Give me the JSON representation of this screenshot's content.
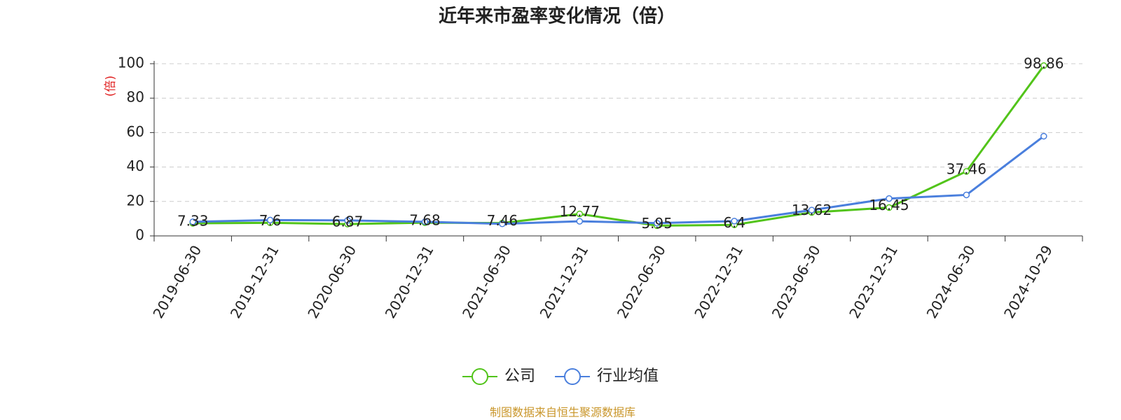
{
  "chart_data": {
    "type": "line",
    "title": "近年来市盈率变化情况（倍）",
    "y_label": "(倍)",
    "categories": [
      "2019-06-30",
      "2019-12-31",
      "2020-06-30",
      "2020-12-31",
      "2021-06-30",
      "2021-12-31",
      "2022-06-30",
      "2022-12-31",
      "2023-06-30",
      "2023-12-31",
      "2024-06-30",
      "2024-10-29"
    ],
    "series": [
      {
        "name": "公司",
        "color": "#52c41a",
        "values": [
          7.33,
          7.6,
          6.87,
          7.68,
          7.46,
          12.77,
          5.95,
          6.4,
          13.62,
          16.45,
          37.46,
          98.86
        ],
        "show_labels": true
      },
      {
        "name": "行业均值",
        "color": "#4a7fdd",
        "values": [
          8.2,
          9.2,
          9.0,
          8.2,
          7.0,
          8.5,
          7.4,
          8.6,
          15.0,
          21.7,
          23.8,
          57.9
        ],
        "show_labels": false
      }
    ],
    "ylim": [
      0,
      100
    ],
    "yticks": [
      0,
      20,
      40,
      60,
      80,
      100
    ],
    "grid": true,
    "source": "制图数据来自恒生聚源数据库"
  }
}
